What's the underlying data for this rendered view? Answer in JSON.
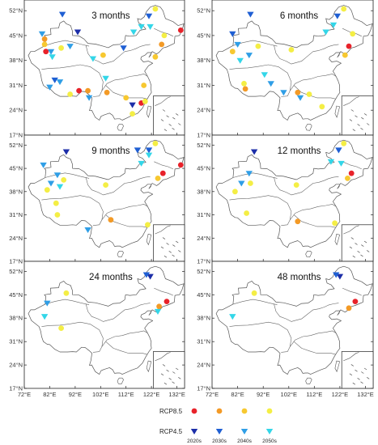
{
  "figure": {
    "lon_ticks": [
      "72°E",
      "82°E",
      "92°E",
      "102°E",
      "112°E",
      "122°E",
      "132°E"
    ],
    "lat_ticks": [
      "52°N",
      "45°N",
      "38°N",
      "31°N",
      "24°N",
      "17°N"
    ],
    "panels": [
      {
        "title": "3 months"
      },
      {
        "title": "6 months"
      },
      {
        "title": "9 months"
      },
      {
        "title": "12 months"
      },
      {
        "title": "24 months"
      },
      {
        "title": "48 months"
      }
    ],
    "legend": {
      "rcp85_label": "RCP8.5",
      "rcp45_label": "RCP4.5",
      "decades": [
        "2020s",
        "2030s",
        "2040s",
        "2050s"
      ],
      "rcp85_colors": [
        "#e8222a",
        "#f39a26",
        "#f7c830",
        "#f4ee45"
      ],
      "rcp45_colors": [
        "#1c2ea8",
        "#1f5fd3",
        "#2f9ee6",
        "#33d6e8"
      ]
    }
  },
  "chart_data": {
    "type": "scatter",
    "lon_range": [
      72,
      135
    ],
    "lat_range": [
      17,
      55
    ],
    "series_keys": [
      "rcp85_2020s",
      "rcp85_2030s",
      "rcp85_2040s",
      "rcp85_2050s",
      "rcp45_2020s",
      "rcp45_2030s",
      "rcp45_2040s",
      "rcp45_2050s"
    ],
    "panels": [
      {
        "title": "3 months",
        "points": [
          {
            "s": "rcp85_2020s",
            "lon": 133.5,
            "lat": 46.5
          },
          {
            "s": "rcp85_2020s",
            "lon": 80.5,
            "lat": 40.5
          },
          {
            "s": "rcp85_2020s",
            "lon": 93.5,
            "lat": 29.5
          },
          {
            "s": "rcp85_2020s",
            "lon": 118.0,
            "lat": 26.0
          },
          {
            "s": "rcp85_2030s",
            "lon": 97.0,
            "lat": 29.5
          },
          {
            "s": "rcp85_2030s",
            "lon": 104.5,
            "lat": 29.0
          },
          {
            "s": "rcp85_2030s",
            "lon": 80.0,
            "lat": 44.0
          },
          {
            "s": "rcp85_2030s",
            "lon": 126.0,
            "lat": 42.5
          },
          {
            "s": "rcp85_2040s",
            "lon": 80.0,
            "lat": 42.5
          },
          {
            "s": "rcp85_2040s",
            "lon": 103.0,
            "lat": 39.5
          },
          {
            "s": "rcp85_2040s",
            "lon": 112.0,
            "lat": 27.5
          },
          {
            "s": "rcp85_2040s",
            "lon": 123.5,
            "lat": 39.0
          },
          {
            "s": "rcp85_2040s",
            "lon": 119.0,
            "lat": 31.0
          },
          {
            "s": "rcp85_2050s",
            "lon": 123.5,
            "lat": 52.5
          },
          {
            "s": "rcp85_2050s",
            "lon": 86.5,
            "lat": 41.5
          },
          {
            "s": "rcp85_2050s",
            "lon": 127.0,
            "lat": 45.0
          },
          {
            "s": "rcp85_2050s",
            "lon": 90.0,
            "lat": 28.5
          },
          {
            "s": "rcp85_2050s",
            "lon": 114.5,
            "lat": 23.0
          },
          {
            "s": "rcp85_2050s",
            "lon": 119.5,
            "lat": 26.5
          },
          {
            "s": "rcp45_2020s",
            "lon": 93.0,
            "lat": 46.0
          },
          {
            "s": "rcp45_2020s",
            "lon": 114.5,
            "lat": 25.5
          },
          {
            "s": "rcp45_2030s",
            "lon": 121.0,
            "lat": 50.5
          },
          {
            "s": "rcp45_2030s",
            "lon": 111.0,
            "lat": 41.5
          },
          {
            "s": "rcp45_2030s",
            "lon": 87.0,
            "lat": 51.0
          },
          {
            "s": "rcp45_2030s",
            "lon": 84.0,
            "lat": 32.5
          },
          {
            "s": "rcp45_2040s",
            "lon": 79.0,
            "lat": 45.5
          },
          {
            "s": "rcp45_2040s",
            "lon": 82.5,
            "lat": 40.5
          },
          {
            "s": "rcp45_2040s",
            "lon": 86.0,
            "lat": 32.0
          },
          {
            "s": "rcp45_2040s",
            "lon": 90.0,
            "lat": 42.0
          },
          {
            "s": "rcp45_2040s",
            "lon": 97.5,
            "lat": 27.5
          },
          {
            "s": "rcp45_2040s",
            "lon": 82.0,
            "lat": 30.5
          },
          {
            "s": "rcp45_2050s",
            "lon": 115.0,
            "lat": 46.0
          },
          {
            "s": "rcp45_2050s",
            "lon": 118.0,
            "lat": 47.5
          },
          {
            "s": "rcp45_2050s",
            "lon": 121.5,
            "lat": 47.5
          },
          {
            "s": "rcp45_2050s",
            "lon": 83.0,
            "lat": 39.0
          },
          {
            "s": "rcp45_2050s",
            "lon": 104.0,
            "lat": 33.0
          },
          {
            "s": "rcp45_2050s",
            "lon": 99.0,
            "lat": 38.5
          }
        ]
      },
      {
        "title": "6 months",
        "points": [
          {
            "s": "rcp85_2020s",
            "lon": 125.5,
            "lat": 42.0
          },
          {
            "s": "rcp85_2030s",
            "lon": 85.0,
            "lat": 30.0
          },
          {
            "s": "rcp85_2030s",
            "lon": 105.5,
            "lat": 29.0
          },
          {
            "s": "rcp85_2040s",
            "lon": 80.0,
            "lat": 40.5
          },
          {
            "s": "rcp85_2040s",
            "lon": 124.0,
            "lat": 39.5
          },
          {
            "s": "rcp85_2050s",
            "lon": 123.5,
            "lat": 52.5
          },
          {
            "s": "rcp85_2050s",
            "lon": 90.0,
            "lat": 42.0
          },
          {
            "s": "rcp85_2050s",
            "lon": 127.0,
            "lat": 45.5
          },
          {
            "s": "rcp85_2050s",
            "lon": 103.0,
            "lat": 41.0
          },
          {
            "s": "rcp85_2050s",
            "lon": 110.0,
            "lat": 28.5
          },
          {
            "s": "rcp85_2050s",
            "lon": 115.0,
            "lat": 25.0
          },
          {
            "s": "rcp85_2050s",
            "lon": 84.5,
            "lat": 31.5
          },
          {
            "s": "rcp45_2030s",
            "lon": 121.0,
            "lat": 50.5
          },
          {
            "s": "rcp45_2030s",
            "lon": 87.0,
            "lat": 51.0
          },
          {
            "s": "rcp45_2030s",
            "lon": 80.0,
            "lat": 45.5
          },
          {
            "s": "rcp45_2040s",
            "lon": 82.0,
            "lat": 42.5
          },
          {
            "s": "rcp45_2040s",
            "lon": 86.5,
            "lat": 39.5
          },
          {
            "s": "rcp45_2040s",
            "lon": 100.0,
            "lat": 29.0
          },
          {
            "s": "rcp45_2040s",
            "lon": 95.0,
            "lat": 31.5
          },
          {
            "s": "rcp45_2040s",
            "lon": 106.5,
            "lat": 27.5
          },
          {
            "s": "rcp45_2050s",
            "lon": 116.5,
            "lat": 46.0
          },
          {
            "s": "rcp45_2050s",
            "lon": 119.5,
            "lat": 48.0
          },
          {
            "s": "rcp45_2050s",
            "lon": 83.0,
            "lat": 38.0
          },
          {
            "s": "rcp45_2050s",
            "lon": 92.5,
            "lat": 34.0
          }
        ]
      },
      {
        "title": "9 months",
        "points": [
          {
            "s": "rcp85_2020s",
            "lon": 133.5,
            "lat": 46.0
          },
          {
            "s": "rcp85_2020s",
            "lon": 126.5,
            "lat": 43.5
          },
          {
            "s": "rcp85_2030s",
            "lon": 106.0,
            "lat": 29.5
          },
          {
            "s": "rcp85_2040s",
            "lon": 124.5,
            "lat": 42.0
          },
          {
            "s": "rcp85_2050s",
            "lon": 123.5,
            "lat": 52.5
          },
          {
            "s": "rcp85_2050s",
            "lon": 81.0,
            "lat": 38.5
          },
          {
            "s": "rcp85_2050s",
            "lon": 87.5,
            "lat": 41.5
          },
          {
            "s": "rcp85_2050s",
            "lon": 104.0,
            "lat": 40.0
          },
          {
            "s": "rcp85_2050s",
            "lon": 85.0,
            "lat": 31.0
          },
          {
            "s": "rcp85_2050s",
            "lon": 120.5,
            "lat": 28.0
          },
          {
            "s": "rcp85_2050s",
            "lon": 84.5,
            "lat": 34.5
          },
          {
            "s": "rcp45_2020s",
            "lon": 88.5,
            "lat": 50.0
          },
          {
            "s": "rcp45_2030s",
            "lon": 121.0,
            "lat": 50.5
          },
          {
            "s": "rcp45_2030s",
            "lon": 116.5,
            "lat": 50.5
          },
          {
            "s": "rcp45_2040s",
            "lon": 79.5,
            "lat": 46.0
          },
          {
            "s": "rcp45_2040s",
            "lon": 85.0,
            "lat": 43.0
          },
          {
            "s": "rcp45_2040s",
            "lon": 82.5,
            "lat": 40.5
          },
          {
            "s": "rcp45_2040s",
            "lon": 97.0,
            "lat": 26.5
          },
          {
            "s": "rcp45_2050s",
            "lon": 118.0,
            "lat": 46.5
          },
          {
            "s": "rcp45_2050s",
            "lon": 121.0,
            "lat": 49.0
          },
          {
            "s": "rcp45_2050s",
            "lon": 86.0,
            "lat": 39.5
          }
        ]
      },
      {
        "title": "12 months",
        "points": [
          {
            "s": "rcp85_2020s",
            "lon": 126.5,
            "lat": 43.5
          },
          {
            "s": "rcp85_2030s",
            "lon": 105.5,
            "lat": 29.0
          },
          {
            "s": "rcp85_2040s",
            "lon": 125.0,
            "lat": 42.0
          },
          {
            "s": "rcp85_2050s",
            "lon": 123.5,
            "lat": 52.5
          },
          {
            "s": "rcp85_2050s",
            "lon": 81.0,
            "lat": 38.0
          },
          {
            "s": "rcp85_2050s",
            "lon": 87.0,
            "lat": 40.5
          },
          {
            "s": "rcp85_2050s",
            "lon": 105.0,
            "lat": 40.0
          },
          {
            "s": "rcp85_2050s",
            "lon": 85.5,
            "lat": 31.5
          },
          {
            "s": "rcp85_2050s",
            "lon": 120.0,
            "lat": 28.5
          },
          {
            "s": "rcp45_2020s",
            "lon": 88.5,
            "lat": 50.0
          },
          {
            "s": "rcp45_2030s",
            "lon": 121.5,
            "lat": 50.5
          },
          {
            "s": "rcp45_2040s",
            "lon": 86.5,
            "lat": 43.5
          },
          {
            "s": "rcp45_2040s",
            "lon": 83.5,
            "lat": 40.5
          },
          {
            "s": "rcp45_2050s",
            "lon": 118.5,
            "lat": 47.0
          },
          {
            "s": "rcp45_2050s",
            "lon": 122.5,
            "lat": 46.5
          }
        ]
      },
      {
        "title": "24 months",
        "points": [
          {
            "s": "rcp85_2020s",
            "lon": 128.0,
            "lat": 43.0
          },
          {
            "s": "rcp85_2030s",
            "lon": 125.0,
            "lat": 41.5
          },
          {
            "s": "rcp85_2050s",
            "lon": 88.5,
            "lat": 45.5
          },
          {
            "s": "rcp85_2050s",
            "lon": 86.5,
            "lat": 35.0
          },
          {
            "s": "rcp45_2020s",
            "lon": 121.5,
            "lat": 50.5
          },
          {
            "s": "rcp45_2030s",
            "lon": 120.0,
            "lat": 51.0
          },
          {
            "s": "rcp45_2040s",
            "lon": 81.0,
            "lat": 42.5
          },
          {
            "s": "rcp45_2050s",
            "lon": 80.0,
            "lat": 38.5
          },
          {
            "s": "rcp45_2050s",
            "lon": 124.5,
            "lat": 40.0
          }
        ]
      },
      {
        "title": "48 months",
        "points": [
          {
            "s": "rcp85_2020s",
            "lon": 128.0,
            "lat": 43.0
          },
          {
            "s": "rcp85_2030s",
            "lon": 125.5,
            "lat": 41.0
          },
          {
            "s": "rcp85_2050s",
            "lon": 88.5,
            "lat": 45.5
          },
          {
            "s": "rcp45_2020s",
            "lon": 122.0,
            "lat": 50.5
          },
          {
            "s": "rcp45_2030s",
            "lon": 120.5,
            "lat": 51.0
          },
          {
            "s": "rcp45_2050s",
            "lon": 80.0,
            "lat": 38.5
          }
        ]
      }
    ]
  }
}
